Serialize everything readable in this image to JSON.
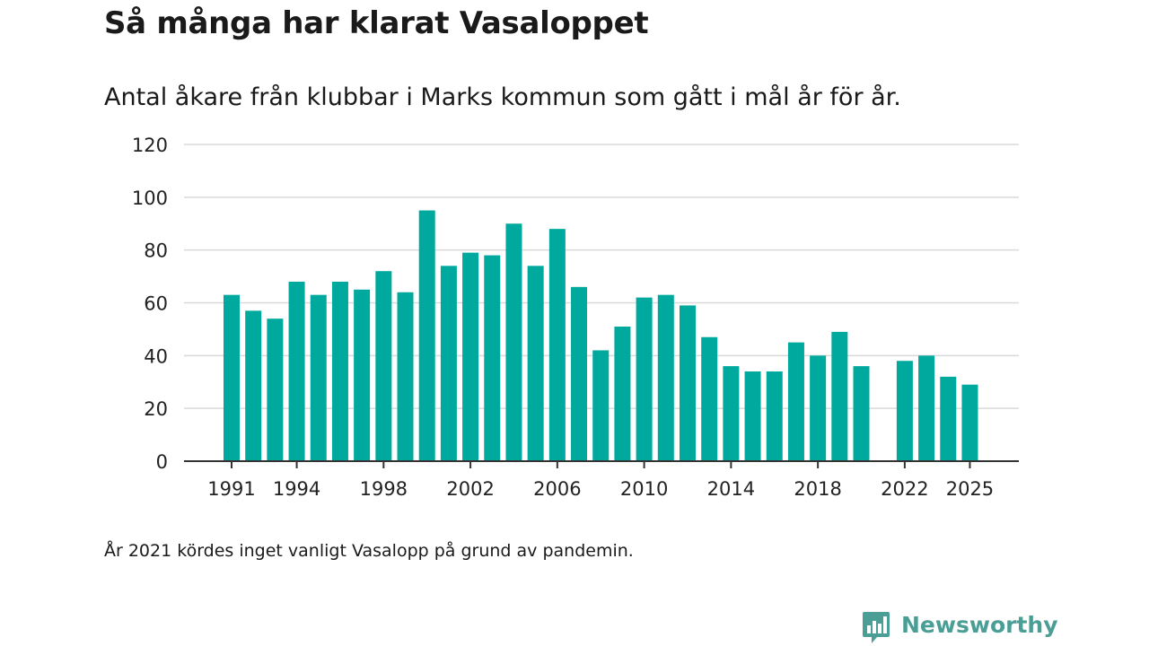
{
  "chart_data": {
    "type": "bar",
    "title": "Så många har klarat Vasaloppet",
    "subtitle": "Antal åkare från klubbar i Marks kommun som gått i mål år för år.",
    "xlabel": "",
    "ylabel": "",
    "ylim": [
      0,
      120
    ],
    "yticks": [
      0,
      20,
      40,
      60,
      80,
      100,
      120
    ],
    "xtick_labels": [
      "1991",
      "1994",
      "1998",
      "2002",
      "2006",
      "2010",
      "2014",
      "2018",
      "2022",
      "2025"
    ],
    "grid": true,
    "bar_color": "#00a99d",
    "categories": [
      1991,
      1992,
      1993,
      1994,
      1995,
      1996,
      1997,
      1998,
      1999,
      2000,
      2001,
      2002,
      2003,
      2004,
      2005,
      2006,
      2007,
      2008,
      2009,
      2010,
      2011,
      2012,
      2013,
      2014,
      2015,
      2016,
      2017,
      2018,
      2019,
      2020,
      2021,
      2022,
      2023,
      2024,
      2025
    ],
    "values": [
      63,
      57,
      54,
      68,
      63,
      68,
      65,
      72,
      64,
      95,
      74,
      79,
      78,
      90,
      74,
      88,
      66,
      42,
      51,
      62,
      63,
      59,
      47,
      36,
      34,
      34,
      45,
      40,
      49,
      36,
      null,
      38,
      40,
      32,
      29
    ]
  },
  "footnote": "År 2021 kördes inget vanligt Vasalopp på grund av pandemin.",
  "brand": {
    "name": "Newsworthy",
    "color": "#4a9e96",
    "icon": "bar-chart-speech-bubble-icon"
  }
}
